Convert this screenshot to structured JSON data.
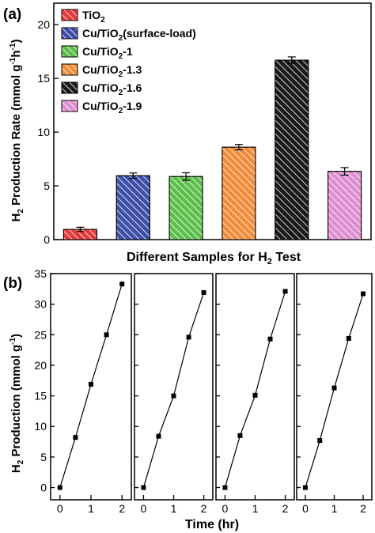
{
  "panel_a": {
    "label": "(a)",
    "ylabel_main": "H",
    "ylabel_sub": "2",
    "ylabel_rest": " Production Rate (mmol g",
    "ylabel_sup": "-1",
    "ylabel_mid": "h",
    "ylabel_sup2": "-1",
    "ylabel_end": ")",
    "xlabel_pre": "Different Samples for H",
    "xlabel_sub": "2",
    "xlabel_post": " Test",
    "legend": [
      {
        "pre": "TiO",
        "sub": "2",
        "post": "",
        "color": "#e8393a",
        "hatch": "#ffffff"
      },
      {
        "pre": "Cu/TiO",
        "sub": "2",
        "post": "(surface-load)",
        "color": "#3f4fa8",
        "hatch": "#ffffff"
      },
      {
        "pre": "Cu/TiO",
        "sub": "2",
        "post": "-1",
        "color": "#5cbf4a",
        "hatch": "#ffffff"
      },
      {
        "pre": "Cu/TiO",
        "sub": "2",
        "post": "-1.3",
        "color": "#f08c3a",
        "hatch": "#ffffff"
      },
      {
        "pre": "Cu/TiO",
        "sub": "2",
        "post": "-1.6",
        "color": "#1a1a1a",
        "hatch": "#ffffff"
      },
      {
        "pre": "Cu/TiO",
        "sub": "2",
        "post": "-1.9",
        "color": "#de8fd0",
        "hatch": "#ffffff"
      }
    ]
  },
  "panel_b": {
    "label": "(b)",
    "ylabel_main": "H",
    "ylabel_sub": "2",
    "ylabel_rest": " Production (mmol g",
    "ylabel_sup": "-1",
    "ylabel_end": ")",
    "xlabel": "Time (hr)"
  },
  "chart_data": [
    {
      "type": "bar",
      "categories": [
        "TiO2",
        "Cu/TiO2(surface-load)",
        "Cu/TiO2-1",
        "Cu/TiO2-1.3",
        "Cu/TiO2-1.6",
        "Cu/TiO2-1.9"
      ],
      "values": [
        0.95,
        5.95,
        5.87,
        8.6,
        16.7,
        6.35
      ],
      "errors": [
        0.2,
        0.25,
        0.35,
        0.25,
        0.3,
        0.35
      ],
      "ylim": [
        0,
        22
      ],
      "yticks": [
        0,
        5,
        10,
        15,
        20
      ],
      "xlabel": "Different Samples for H2 Test",
      "ylabel": "H2 Production Rate (mmol g-1 h-1)",
      "legend_position": "top-left"
    },
    {
      "type": "line",
      "x": [
        0,
        0.5,
        1,
        1.5,
        2
      ],
      "series": [
        {
          "values": [
            0,
            8.2,
            16.9,
            25.0,
            33.3
          ]
        },
        {
          "values": [
            0,
            8.4,
            15.0,
            24.6,
            31.9
          ]
        },
        {
          "values": [
            0,
            8.5,
            15.1,
            24.3,
            32.1
          ]
        },
        {
          "values": [
            0,
            7.7,
            16.3,
            24.4,
            31.7
          ]
        }
      ],
      "xlim": [
        -0.3,
        2.3
      ],
      "xticks": [
        0,
        1,
        2
      ],
      "ylim": [
        -2,
        35
      ],
      "yticks": [
        0,
        5,
        10,
        15,
        20,
        25,
        30,
        35
      ],
      "xlabel": "Time (hr)",
      "ylabel": "H2 Production (mmol g-1)"
    }
  ]
}
